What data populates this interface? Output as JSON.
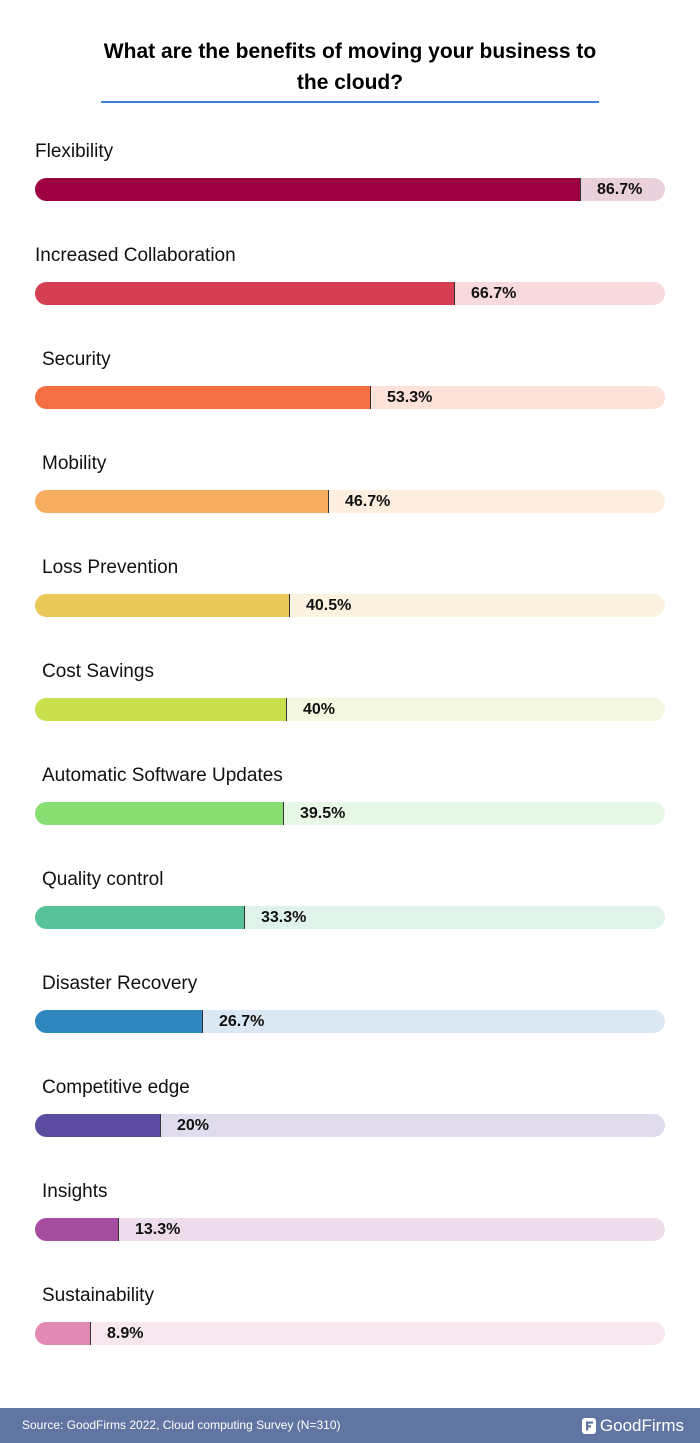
{
  "title": "What are the benefits of moving your business to the cloud?",
  "chart_data": {
    "type": "bar",
    "orientation": "horizontal",
    "xlim": [
      0,
      100
    ],
    "categories": [
      "Flexibility",
      "Increased Collaboration",
      "Security",
      "Mobility",
      "Loss Prevention",
      "Cost Savings",
      "Automatic Software Updates",
      "Quality control",
      "Disaster Recovery",
      "Competitive edge",
      "Insights",
      "Sustainability"
    ],
    "values": [
      86.7,
      66.7,
      53.3,
      46.7,
      40.5,
      40,
      39.5,
      33.3,
      26.7,
      20,
      13.3,
      8.9
    ],
    "value_labels": [
      "86.7%",
      "66.7%",
      "53.3%",
      "46.7%",
      "40.5%",
      "40%",
      "39.5%",
      "33.3%",
      "26.7%",
      "20%",
      "13.3%",
      "8.9%"
    ],
    "colors": [
      "#9c0040",
      "#d63f51",
      "#f56f45",
      "#f6ad5f",
      "#eac85a",
      "#c9e04c",
      "#88dd73",
      "#58c29b",
      "#3087bf",
      "#5b4c9f",
      "#a64d9f",
      "#e18bb4"
    ],
    "track_colors": [
      "#ead0da",
      "#f8dadd",
      "#fde2d9",
      "#fdeedf",
      "#fbf3df",
      "#f4f8e0",
      "#e8f8e6",
      "#e0f3ea",
      "#dbe8f3",
      "#e0dced",
      "#ecdcec",
      "#f8e7ef"
    ]
  },
  "footer": {
    "source": "Source: GoodFirms 2022, Cloud computing Survey (N=310)",
    "brand": "GoodFirms",
    "brand_icon": "goodfirms-logo-icon"
  }
}
